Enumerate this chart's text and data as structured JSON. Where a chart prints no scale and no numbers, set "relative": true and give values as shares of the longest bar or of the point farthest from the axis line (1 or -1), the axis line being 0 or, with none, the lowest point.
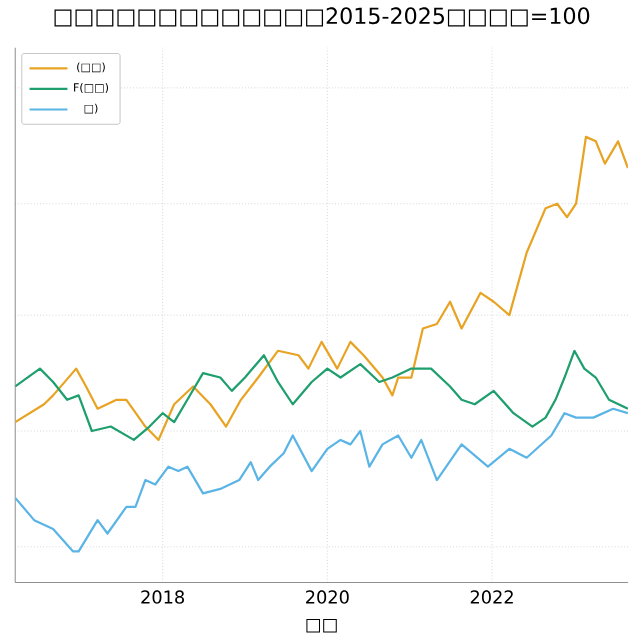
{
  "chart_data": {
    "type": "line",
    "title": "□□□□□□□□□□□□□2015-2025□□□□=100",
    "xlabel": "□□",
    "relative": true,
    "xlim": [
      2016.21,
      2023.65
    ],
    "xticks": [
      2018,
      2020,
      2022
    ],
    "grid": true,
    "legend": "top left",
    "series": [
      {
        "name": "(□□)",
        "color": "#e8a323",
        "x": [
          2016.21,
          2016.56,
          2016.67,
          2016.95,
          2017.07,
          2017.21,
          2017.44,
          2017.56,
          2017.79,
          2017.95,
          2018.14,
          2018.37,
          2018.58,
          2018.77,
          2018.95,
          2019.16,
          2019.4,
          2019.65,
          2019.77,
          2019.93,
          2020.12,
          2020.28,
          2020.44,
          2020.67,
          2020.79,
          2020.86,
          2021.02,
          2021.16,
          2021.33,
          2021.49,
          2021.63,
          2021.86,
          2022.02,
          2022.21,
          2022.42,
          2022.65,
          2022.79,
          2022.91,
          2023.02,
          2023.14,
          2023.26,
          2023.37,
          2023.53,
          2023.65
        ],
        "values": [
          0.36,
          0.4,
          0.42,
          0.48,
          0.44,
          0.39,
          0.41,
          0.41,
          0.35,
          0.32,
          0.4,
          0.44,
          0.4,
          0.35,
          0.41,
          0.46,
          0.52,
          0.51,
          0.48,
          0.54,
          0.48,
          0.54,
          0.51,
          0.46,
          0.42,
          0.46,
          0.46,
          0.57,
          0.58,
          0.63,
          0.57,
          0.65,
          0.63,
          0.6,
          0.74,
          0.84,
          0.85,
          0.82,
          0.85,
          1.0,
          0.99,
          0.94,
          0.99,
          0.93
        ]
      },
      {
        "name": "F(□□)",
        "color": "#1f9e6e",
        "x": [
          2016.21,
          2016.51,
          2016.67,
          2016.84,
          2016.98,
          2017.14,
          2017.37,
          2017.65,
          2017.84,
          2018.0,
          2018.14,
          2018.3,
          2018.49,
          2018.7,
          2018.84,
          2019.0,
          2019.23,
          2019.4,
          2019.58,
          2019.81,
          2020.0,
          2020.16,
          2020.4,
          2020.63,
          2020.79,
          2021.02,
          2021.26,
          2021.49,
          2021.63,
          2021.79,
          2022.02,
          2022.26,
          2022.49,
          2022.65,
          2022.77,
          2022.88,
          2023.0,
          2023.12,
          2023.26,
          2023.42,
          2023.65
        ],
        "values": [
          0.44,
          0.48,
          0.45,
          0.41,
          0.42,
          0.34,
          0.35,
          0.32,
          0.35,
          0.38,
          0.36,
          0.41,
          0.47,
          0.46,
          0.43,
          0.46,
          0.51,
          0.45,
          0.4,
          0.45,
          0.48,
          0.46,
          0.49,
          0.45,
          0.46,
          0.48,
          0.48,
          0.44,
          0.41,
          0.4,
          0.43,
          0.38,
          0.35,
          0.37,
          0.41,
          0.46,
          0.52,
          0.48,
          0.46,
          0.41,
          0.39
        ]
      },
      {
        "name": "□)",
        "color": "#5ab4e6",
        "x": [
          2016.21,
          2016.44,
          2016.67,
          2016.91,
          2016.98,
          2017.21,
          2017.33,
          2017.56,
          2017.67,
          2017.79,
          2017.91,
          2018.07,
          2018.19,
          2018.3,
          2018.49,
          2018.7,
          2018.93,
          2019.07,
          2019.16,
          2019.3,
          2019.47,
          2019.58,
          2019.81,
          2020.0,
          2020.16,
          2020.28,
          2020.4,
          2020.51,
          2020.67,
          2020.86,
          2021.02,
          2021.14,
          2021.33,
          2021.63,
          2021.95,
          2022.21,
          2022.42,
          2022.72,
          2022.88,
          2023.02,
          2023.23,
          2023.47,
          2023.65
        ],
        "values": [
          0.19,
          0.14,
          0.12,
          0.07,
          0.07,
          0.14,
          0.11,
          0.17,
          0.17,
          0.23,
          0.22,
          0.26,
          0.25,
          0.26,
          0.2,
          0.21,
          0.23,
          0.27,
          0.23,
          0.26,
          0.29,
          0.33,
          0.25,
          0.3,
          0.32,
          0.31,
          0.34,
          0.26,
          0.31,
          0.33,
          0.28,
          0.32,
          0.23,
          0.31,
          0.26,
          0.3,
          0.28,
          0.33,
          0.38,
          0.37,
          0.37,
          0.39,
          0.38
        ]
      }
    ]
  }
}
